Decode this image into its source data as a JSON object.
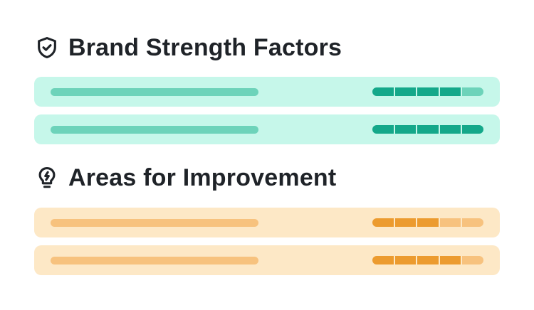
{
  "sections": [
    {
      "title": "Brand Strength Factors",
      "icon": "shield-check-icon",
      "colors": {
        "row_bg": "#c6f7ea",
        "bar": "#6dd3ba",
        "rating_on": "#14a88a",
        "rating_off": "#6dd3ba"
      },
      "items": [
        {
          "rating": 4,
          "rating_max": 5
        },
        {
          "rating": 5,
          "rating_max": 5
        }
      ]
    },
    {
      "title": "Areas for Improvement",
      "icon": "lightbulb-icon",
      "colors": {
        "row_bg": "#fde8c6",
        "bar": "#f7c27e",
        "rating_on": "#ec9b2f",
        "rating_off": "#f7c27e"
      },
      "items": [
        {
          "rating": 3,
          "rating_max": 5
        },
        {
          "rating": 4,
          "rating_max": 5
        }
      ]
    }
  ]
}
